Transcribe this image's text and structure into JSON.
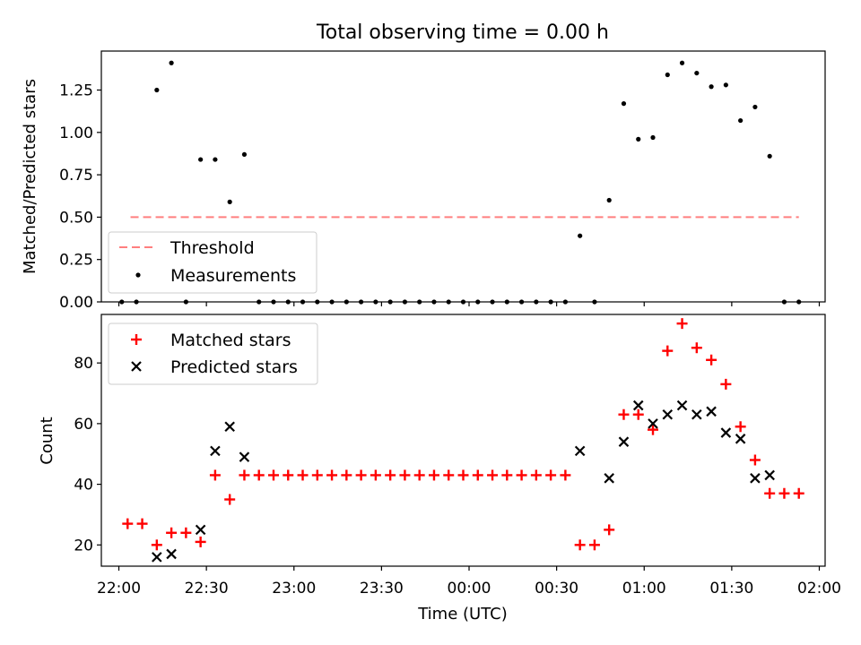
{
  "chart_data": [
    {
      "type": "scatter",
      "title": "Total observing time = 0.00 h",
      "xlabel": "",
      "ylabel": "Matched/Predicted stars",
      "ylim": [
        0,
        1.48
      ],
      "xlim": [
        "21:54",
        "02:02"
      ],
      "y_ticks": [
        "0.00",
        "0.25",
        "0.50",
        "0.75",
        "1.00",
        "1.25"
      ],
      "legend_position": "lower-left",
      "threshold": {
        "name": "Threshold",
        "value": 0.5,
        "x_start": "22:04",
        "x_end": "01:53",
        "color": "#ff7f7f",
        "style": "dashed"
      },
      "series": [
        {
          "name": "Measurements",
          "color": "#000000",
          "marker": "dot",
          "x": [
            "22:01",
            "22:06",
            "22:13",
            "22:18",
            "22:23",
            "22:28",
            "22:33",
            "22:38",
            "22:43",
            "22:48",
            "22:53",
            "22:58",
            "23:03",
            "23:08",
            "23:13",
            "23:18",
            "23:23",
            "23:28",
            "23:33",
            "23:38",
            "23:43",
            "23:48",
            "23:53",
            "23:58",
            "00:03",
            "00:08",
            "00:13",
            "00:18",
            "00:23",
            "00:28",
            "00:33",
            "00:38",
            "00:43",
            "00:48",
            "00:53",
            "00:58",
            "01:03",
            "01:08",
            "01:13",
            "01:18",
            "01:23",
            "01:28",
            "01:33",
            "01:38",
            "01:43",
            "01:48",
            "01:53"
          ],
          "y": [
            0.0,
            0.0,
            1.25,
            1.41,
            0.0,
            0.84,
            0.84,
            0.59,
            0.87,
            0.0,
            0.0,
            0.0,
            0.0,
            0.0,
            0.0,
            0.0,
            0.0,
            0.0,
            0.0,
            0.0,
            0.0,
            0.0,
            0.0,
            0.0,
            0.0,
            0.0,
            0.0,
            0.0,
            0.0,
            0.0,
            0.0,
            0.39,
            0.0,
            0.6,
            1.17,
            0.96,
            0.97,
            1.34,
            1.41,
            1.35,
            1.27,
            1.28,
            1.07,
            1.15,
            0.86,
            0.0,
            0.0
          ]
        }
      ]
    },
    {
      "type": "scatter",
      "title": "",
      "xlabel": "Time (UTC)",
      "ylabel": "Count",
      "ylim": [
        13,
        96
      ],
      "xlim": [
        "21:54",
        "02:02"
      ],
      "x_ticks": [
        "22:00",
        "22:30",
        "23:00",
        "23:30",
        "00:00",
        "00:30",
        "01:00",
        "01:30",
        "02:00"
      ],
      "y_ticks": [
        "20",
        "40",
        "60",
        "80"
      ],
      "legend_position": "upper-left",
      "series": [
        {
          "name": "Matched stars",
          "color": "#ff0000",
          "marker": "plus",
          "x": [
            "22:03",
            "22:08",
            "22:13",
            "22:18",
            "22:23",
            "22:28",
            "22:33",
            "22:38",
            "22:43",
            "22:48",
            "22:53",
            "22:58",
            "23:03",
            "23:08",
            "23:13",
            "23:18",
            "23:23",
            "23:28",
            "23:33",
            "23:38",
            "23:43",
            "23:48",
            "23:53",
            "23:58",
            "00:03",
            "00:08",
            "00:13",
            "00:18",
            "00:23",
            "00:28",
            "00:33",
            "00:38",
            "00:43",
            "00:48",
            "00:53",
            "00:58",
            "01:03",
            "01:08",
            "01:13",
            "01:18",
            "01:23",
            "01:28",
            "01:33",
            "01:38",
            "01:43",
            "01:48",
            "01:53"
          ],
          "y": [
            27,
            27,
            20,
            24,
            24,
            21,
            43,
            35,
            43,
            43,
            43,
            43,
            43,
            43,
            43,
            43,
            43,
            43,
            43,
            43,
            43,
            43,
            43,
            43,
            43,
            43,
            43,
            43,
            43,
            43,
            43,
            20,
            20,
            25,
            63,
            63,
            58,
            84,
            93,
            85,
            81,
            73,
            59,
            48,
            37,
            37,
            37
          ]
        },
        {
          "name": "Predicted stars",
          "color": "#000000",
          "marker": "x",
          "x": [
            "22:13",
            "22:18",
            "22:28",
            "22:33",
            "22:38",
            "22:43",
            "00:38",
            "00:48",
            "00:53",
            "00:58",
            "01:03",
            "01:08",
            "01:13",
            "01:18",
            "01:23",
            "01:28",
            "01:33",
            "01:38",
            "01:43"
          ],
          "y": [
            16,
            17,
            25,
            51,
            59,
            49,
            51,
            42,
            54,
            66,
            60,
            63,
            66,
            63,
            64,
            57,
            55,
            42,
            43
          ]
        }
      ]
    }
  ]
}
